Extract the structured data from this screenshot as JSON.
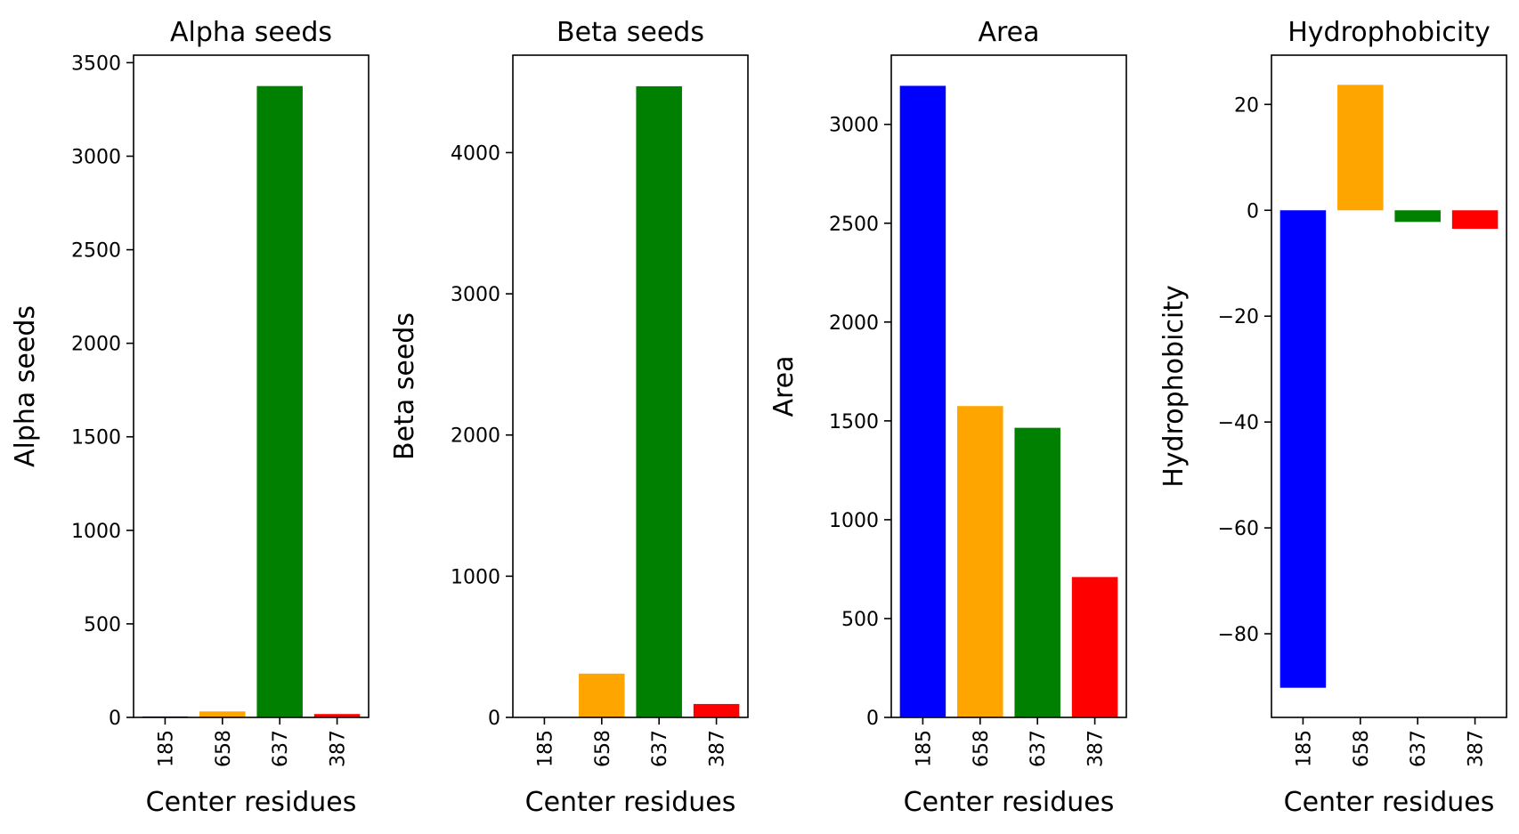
{
  "chart_data": [
    {
      "type": "bar",
      "title": "Alpha seeds",
      "xlabel": "Center residues",
      "ylabel": "Alpha seeds",
      "categories": [
        "185",
        "658",
        "637",
        "387"
      ],
      "values": [
        5,
        32,
        3375,
        18
      ],
      "colors": [
        "#0000ff",
        "#ffa500",
        "#008000",
        "#ff0000"
      ],
      "ylim": [
        0,
        3540
      ],
      "yticks": [
        0,
        500,
        1000,
        1500,
        2000,
        2500,
        3000,
        3500
      ],
      "grid": false
    },
    {
      "type": "bar",
      "title": "Beta seeds",
      "xlabel": "Center residues",
      "ylabel": "Beta seeds",
      "categories": [
        "185",
        "658",
        "637",
        "387"
      ],
      "values": [
        3,
        310,
        4470,
        95
      ],
      "colors": [
        "#0000ff",
        "#ffa500",
        "#008000",
        "#ff0000"
      ],
      "ylim": [
        0,
        4690
      ],
      "yticks": [
        0,
        1000,
        2000,
        3000,
        4000
      ],
      "grid": false
    },
    {
      "type": "bar",
      "title": "Area",
      "xlabel": "Center residues",
      "ylabel": "Area",
      "categories": [
        "185",
        "658",
        "637",
        "387"
      ],
      "values": [
        3195,
        1575,
        1465,
        710
      ],
      "colors": [
        "#0000ff",
        "#ffa500",
        "#008000",
        "#ff0000"
      ],
      "ylim": [
        0,
        3350
      ],
      "yticks": [
        0,
        500,
        1000,
        1500,
        2000,
        2500,
        3000
      ],
      "grid": false
    },
    {
      "type": "bar",
      "title": "Hydrophobicity",
      "xlabel": "Center residues",
      "ylabel": "Hydrophobicity",
      "categories": [
        "185",
        "658",
        "637",
        "387"
      ],
      "values": [
        -90.2,
        23.7,
        -2.2,
        -3.5
      ],
      "colors": [
        "#0000ff",
        "#ffa500",
        "#008000",
        "#ff0000"
      ],
      "ylim": [
        -95.8,
        29.3
      ],
      "yticks": [
        -80,
        -60,
        -40,
        -20,
        0,
        20
      ],
      "ytick_labels": [
        "−80",
        "−60",
        "−40",
        "−20",
        "0",
        "20"
      ],
      "grid": false
    }
  ]
}
